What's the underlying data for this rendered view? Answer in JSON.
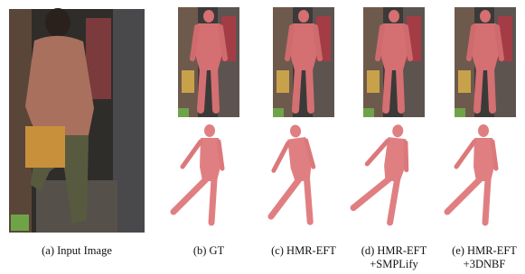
{
  "captions": [
    {
      "lines": [
        "(a) Input Image"
      ]
    },
    {
      "lines": [
        "(b) GT"
      ]
    },
    {
      "lines": [
        "(c) HMR-EFT"
      ]
    },
    {
      "lines": [
        "(d) HMR-EFT",
        "+SMPLify"
      ]
    },
    {
      "lines": [
        "(e) HMR-EFT",
        "+3DNBF"
      ]
    }
  ]
}
